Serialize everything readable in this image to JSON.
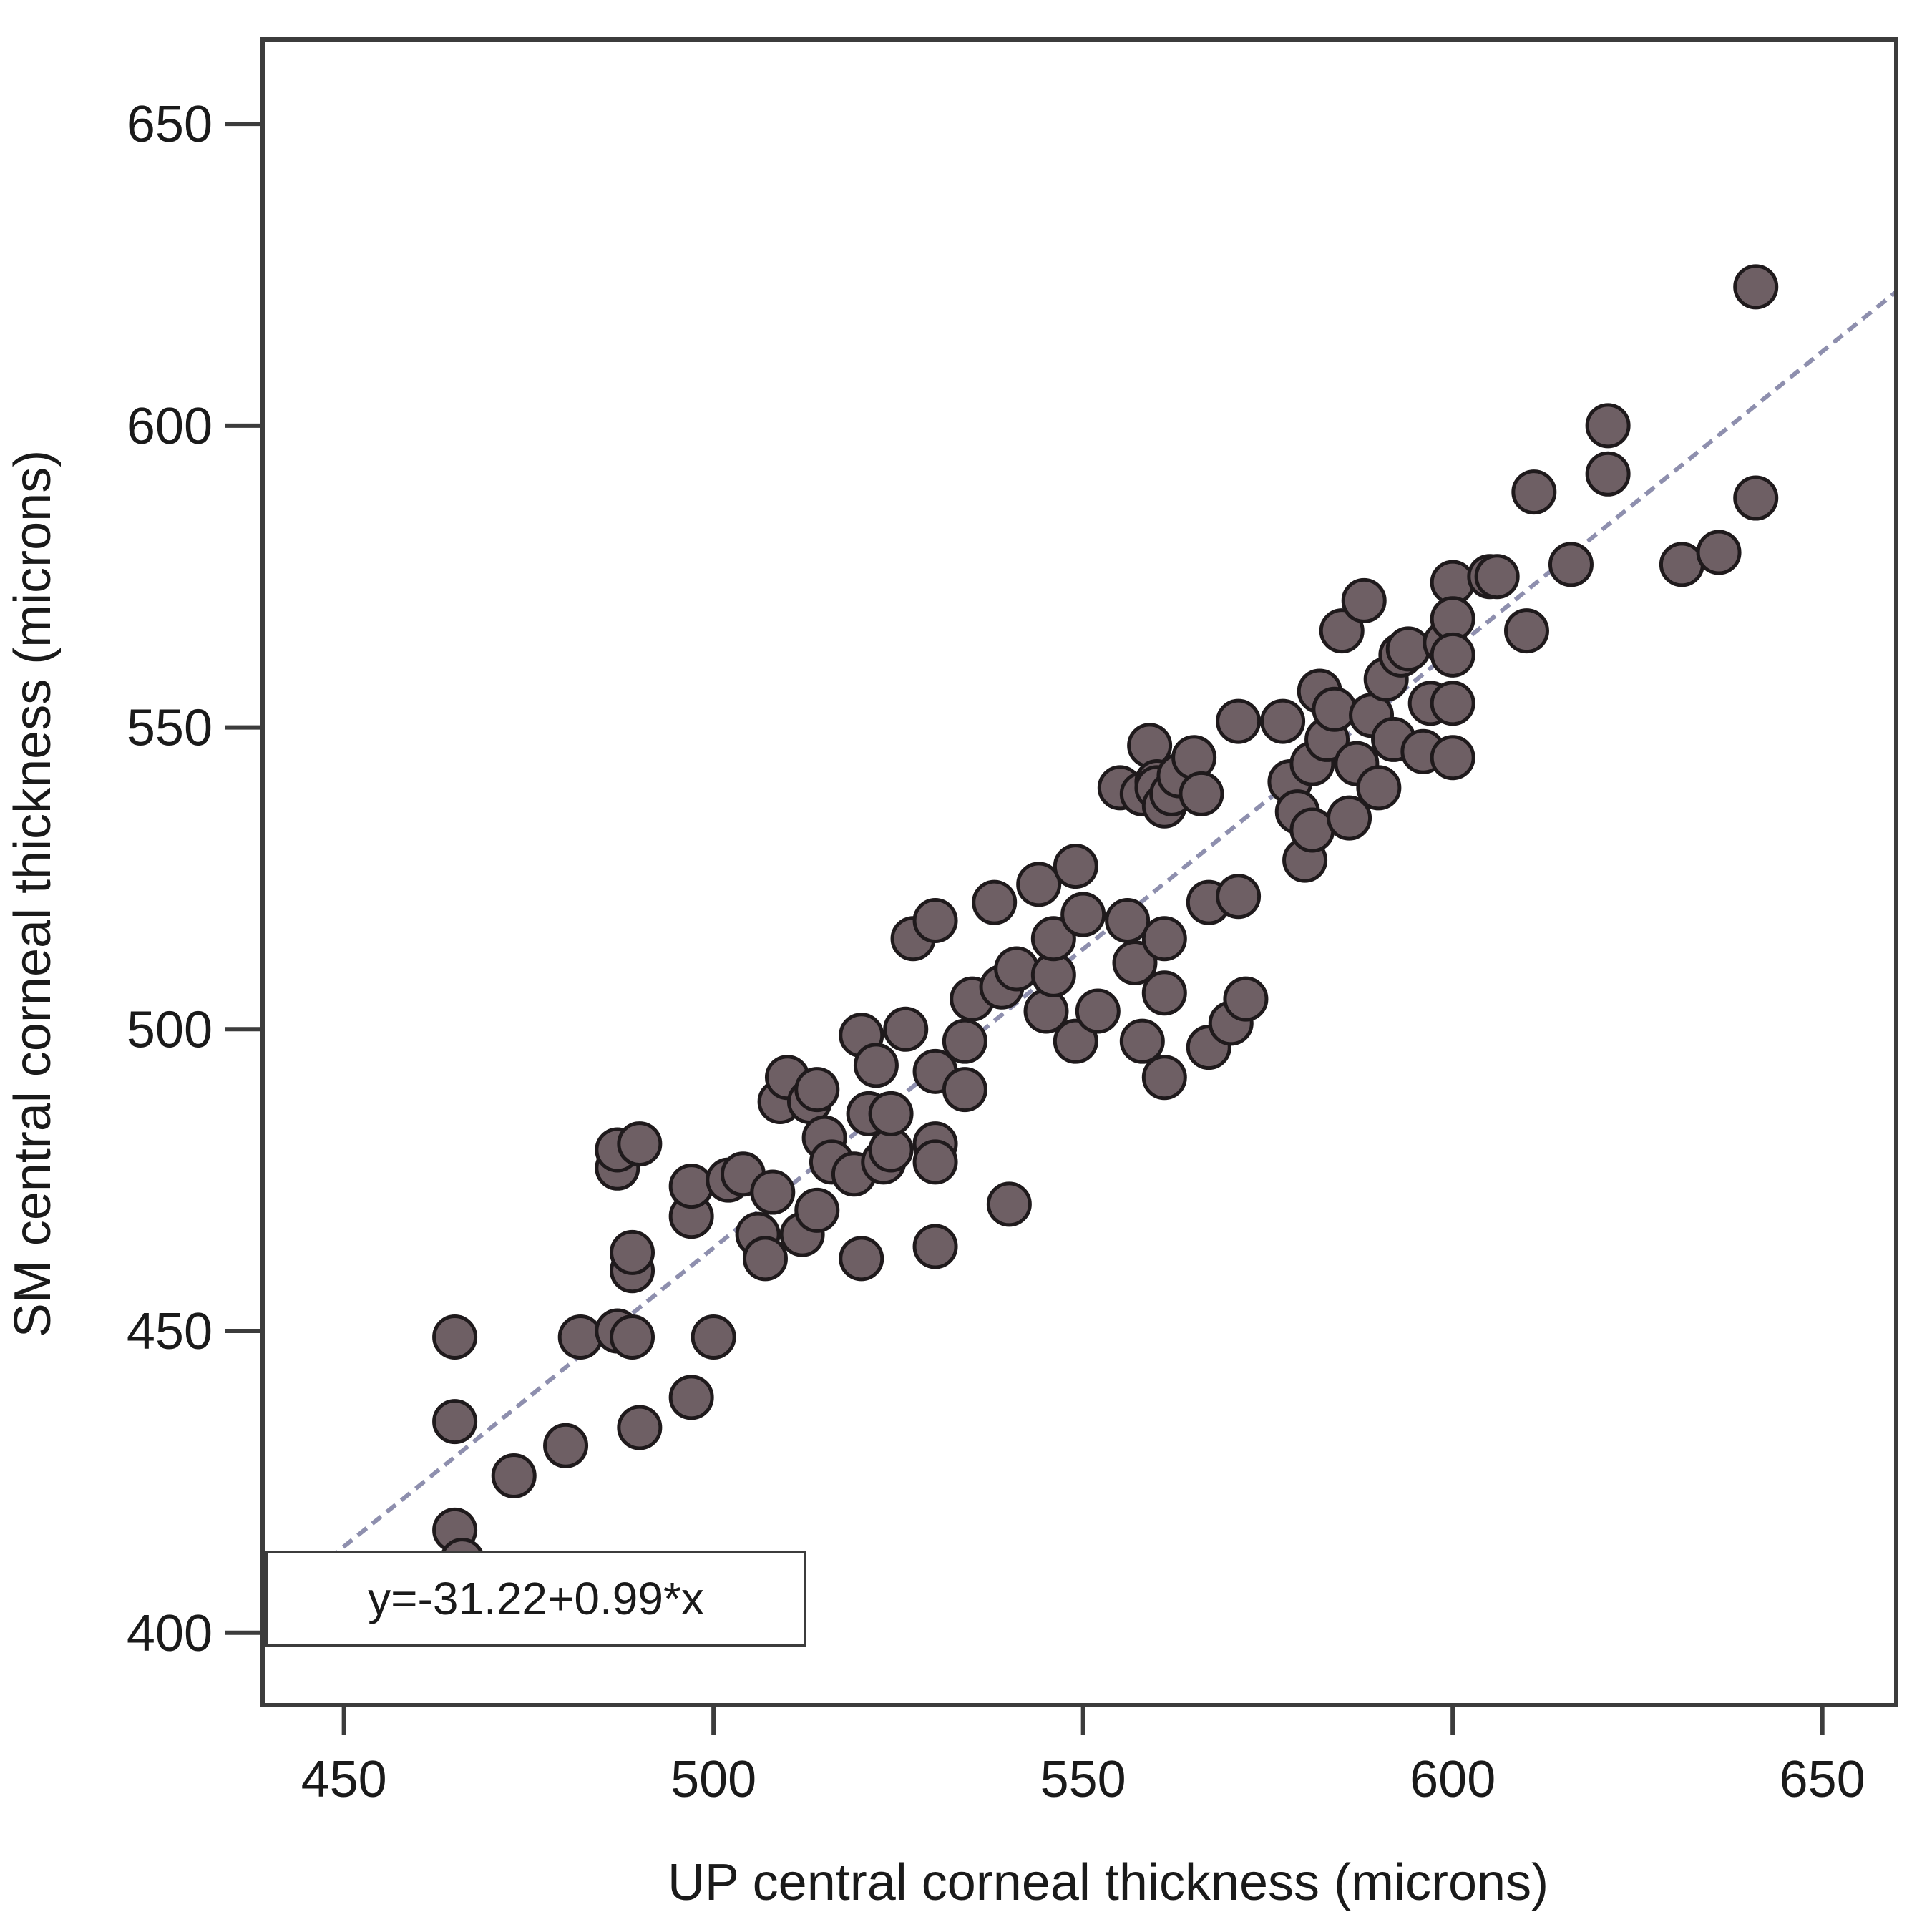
{
  "chart_data": {
    "type": "scatter",
    "title": "",
    "xlabel": "UP central corneal thickness (microns)",
    "ylabel": "SM central corneal thickness (microns)",
    "xlim": [
      439,
      660
    ],
    "ylim": [
      388,
      664
    ],
    "xticks": [
      450,
      500,
      550,
      600,
      650
    ],
    "yticks": [
      400,
      450,
      500,
      550,
      600,
      650
    ],
    "xtick_labels": [
      "450",
      "500",
      "550",
      "600",
      "650"
    ],
    "ytick_labels": [
      "400",
      "450",
      "500",
      "550",
      "600",
      "650"
    ],
    "grid": false,
    "legend": "none",
    "marker_color": "#6e5f64",
    "marker_edge_color": "#1f1a1c",
    "fit_line_color": "#8e8fae",
    "fit_line": {
      "intercept": -31.22,
      "slope": 0.99,
      "x_range": [
        446,
        660
      ]
    },
    "equation_label": "y=-31.22+0.99*x",
    "points": [
      [
        465,
        449
      ],
      [
        465,
        435
      ],
      [
        465,
        417
      ],
      [
        466,
        412
      ],
      [
        473,
        426
      ],
      [
        480,
        431
      ],
      [
        482,
        449
      ],
      [
        487,
        450
      ],
      [
        489,
        449
      ],
      [
        490,
        434
      ],
      [
        487,
        477
      ],
      [
        487,
        480
      ],
      [
        490,
        481
      ],
      [
        489,
        460
      ],
      [
        489,
        463
      ],
      [
        497,
        439
      ],
      [
        497,
        469
      ],
      [
        497,
        474
      ],
      [
        500,
        449
      ],
      [
        502,
        475
      ],
      [
        504,
        476
      ],
      [
        506,
        466
      ],
      [
        507,
        462
      ],
      [
        508,
        473
      ],
      [
        509,
        488
      ],
      [
        510,
        492
      ],
      [
        512,
        466
      ],
      [
        513,
        488
      ],
      [
        514,
        470
      ],
      [
        514,
        490
      ],
      [
        515,
        482
      ],
      [
        516,
        478
      ],
      [
        519,
        476
      ],
      [
        520,
        462
      ],
      [
        521,
        486
      ],
      [
        520,
        499
      ],
      [
        522,
        494
      ],
      [
        523,
        478
      ],
      [
        524,
        480
      ],
      [
        524,
        486
      ],
      [
        526,
        500
      ],
      [
        527,
        515
      ],
      [
        530,
        518
      ],
      [
        530,
        493
      ],
      [
        530,
        481
      ],
      [
        530,
        478
      ],
      [
        530,
        464
      ],
      [
        534,
        498
      ],
      [
        534,
        490
      ],
      [
        535,
        505
      ],
      [
        538,
        521
      ],
      [
        539,
        507
      ],
      [
        540,
        471
      ],
      [
        541,
        510
      ],
      [
        544,
        524
      ],
      [
        545,
        503
      ],
      [
        546,
        509
      ],
      [
        546,
        515
      ],
      [
        549,
        527
      ],
      [
        549,
        498
      ],
      [
        550,
        519
      ],
      [
        552,
        503
      ],
      [
        555,
        540
      ],
      [
        556,
        518
      ],
      [
        557,
        511
      ],
      [
        558,
        498
      ],
      [
        558,
        539
      ],
      [
        559,
        547
      ],
      [
        560,
        541
      ],
      [
        560,
        540
      ],
      [
        561,
        492
      ],
      [
        561,
        506
      ],
      [
        561,
        515
      ],
      [
        561,
        537
      ],
      [
        562,
        539
      ],
      [
        563,
        542
      ],
      [
        565,
        545
      ],
      [
        566,
        539
      ],
      [
        567,
        521
      ],
      [
        567,
        497
      ],
      [
        570,
        501
      ],
      [
        571,
        522
      ],
      [
        571,
        551
      ],
      [
        572,
        505
      ],
      [
        577,
        551
      ],
      [
        578,
        541
      ],
      [
        579,
        536
      ],
      [
        580,
        528
      ],
      [
        581,
        544
      ],
      [
        581,
        533
      ],
      [
        582,
        556
      ],
      [
        583,
        548
      ],
      [
        584,
        553
      ],
      [
        585,
        566
      ],
      [
        586,
        535
      ],
      [
        587,
        544
      ],
      [
        588,
        571
      ],
      [
        589,
        552
      ],
      [
        590,
        540
      ],
      [
        591,
        558
      ],
      [
        592,
        548
      ],
      [
        593,
        562
      ],
      [
        594,
        563
      ],
      [
        596,
        546
      ],
      [
        597,
        554
      ],
      [
        599,
        564
      ],
      [
        600,
        574
      ],
      [
        600,
        568
      ],
      [
        600,
        562
      ],
      [
        600,
        554
      ],
      [
        600,
        545
      ],
      [
        605,
        575
      ],
      [
        606,
        575
      ],
      [
        610,
        566
      ],
      [
        611,
        589
      ],
      [
        616,
        577
      ],
      [
        621,
        600
      ],
      [
        621,
        592
      ],
      [
        631,
        577
      ],
      [
        636,
        579
      ],
      [
        641,
        588
      ],
      [
        641,
        623
      ]
    ]
  }
}
